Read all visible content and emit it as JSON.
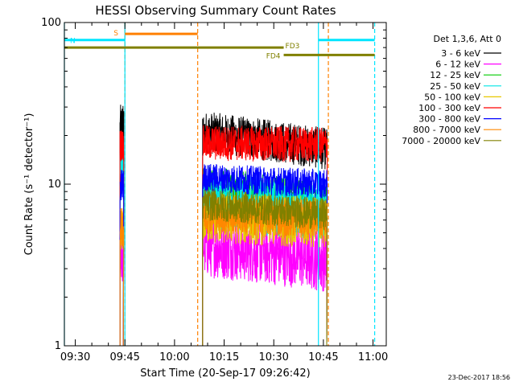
{
  "chart_data": {
    "type": "line",
    "title": "HESSI Observing Summary Count Rates",
    "xlabel": "Start Time (20-Sep-17 09:26:42)",
    "ylabel": "Count Rate (s⁻¹ detector⁻¹)",
    "y_scale": "log",
    "ylim": [
      1,
      100
    ],
    "xlim": [
      "09:26:42",
      "11:04:00"
    ],
    "x_ticks": [
      "09:30",
      "09:45",
      "10:00",
      "10:15",
      "10:30",
      "10:45",
      "11:00"
    ],
    "y_ticks": [
      "1",
      "10",
      "100"
    ],
    "grid": false,
    "legend": {
      "title": "Det 1,3,6, Att 0",
      "placement": "right"
    },
    "series": [
      {
        "name": "3 - 6 keV",
        "color": "#000000",
        "segments": [
          {
            "from": "09:43:30",
            "to": "09:44:30",
            "level": 21.5,
            "jitter": 0.16
          },
          {
            "from": "10:08:30",
            "to": "10:46:00",
            "level": 21.0,
            "jitter": 0.13,
            "end_level": 16.5
          }
        ]
      },
      {
        "name": "6 - 12 keV",
        "color": "#ff00ff",
        "segments": [
          {
            "from": "09:43:30",
            "to": "09:44:30",
            "level": 3.6,
            "jitter": 0.18
          },
          {
            "from": "10:08:30",
            "to": "10:46:00",
            "level": 4.2,
            "jitter": 0.2,
            "end_level": 3.4
          }
        ]
      },
      {
        "name": "12 - 25 keV",
        "color": "#00cc00",
        "segments": [
          {
            "from": "09:43:30",
            "to": "09:44:30",
            "level": 12.5,
            "jitter": 0.14
          },
          {
            "from": "10:08:30",
            "to": "10:46:00",
            "level": 9.0,
            "jitter": 0.16,
            "end_level": 7.0
          }
        ]
      },
      {
        "name": "25 - 50 keV",
        "color": "#00e5e5",
        "segments": [
          {
            "from": "09:43:30",
            "to": "09:44:30",
            "level": 13.0,
            "jitter": 0.14
          },
          {
            "from": "10:08:30",
            "to": "10:46:00",
            "level": 8.0,
            "jitter": 0.18,
            "end_level": 6.5
          }
        ]
      },
      {
        "name": "50 - 100 keV",
        "color": "#e8c800",
        "segments": [
          {
            "from": "09:43:30",
            "to": "09:44:30",
            "level": 5.2,
            "jitter": 0.12
          },
          {
            "from": "10:08:30",
            "to": "10:46:00",
            "level": 6.2,
            "jitter": 0.16,
            "end_level": 5.8
          }
        ]
      },
      {
        "name": "100 - 300 keV",
        "color": "#ff0000",
        "segments": [
          {
            "from": "09:43:30",
            "to": "09:44:30",
            "level": 17.5,
            "jitter": 0.1
          },
          {
            "from": "10:08:30",
            "to": "10:46:00",
            "level": 18.0,
            "jitter": 0.11,
            "end_level": 17.5
          }
        ]
      },
      {
        "name": "300 - 800 keV",
        "color": "#0000ff",
        "segments": [
          {
            "from": "09:43:30",
            "to": "09:44:30",
            "level": 9.8,
            "jitter": 0.1
          },
          {
            "from": "10:08:30",
            "to": "10:46:00",
            "level": 11.0,
            "jitter": 0.09,
            "end_level": 10.0
          }
        ]
      },
      {
        "name": "800 - 7000 keV",
        "color": "#ff8800",
        "segments": [
          {
            "from": "09:43:30",
            "to": "09:44:30",
            "level": 5.4,
            "jitter": 0.12
          },
          {
            "from": "10:08:30",
            "to": "10:46:00",
            "level": 6.5,
            "jitter": 0.12,
            "end_level": 6.0
          }
        ]
      },
      {
        "name": "7000 - 20000 keV",
        "color": "#808000",
        "segments": [
          {
            "from": "10:08:30",
            "to": "10:46:00",
            "level": 7.5,
            "jitter": 0.1,
            "end_level": 6.5
          }
        ]
      }
    ],
    "annotations": {
      "bars": [
        {
          "label": "S",
          "color": "#ff8000",
          "from": "09:45:00",
          "to": "10:07:00",
          "level": 85
        },
        {
          "label": "N",
          "color": "#00e5ff",
          "from": "09:26:42",
          "to": "09:45:00",
          "level": 78
        },
        {
          "label": "",
          "color": "#00e5ff",
          "from": "10:43:30",
          "to": "11:00:30",
          "level": 78
        },
        {
          "label": "FD3",
          "color": "#808000",
          "from": "09:26:42",
          "to": "10:33:00",
          "level": 70
        },
        {
          "label": "FD4",
          "color": "#808000",
          "from": "10:33:00",
          "to": "11:00:30",
          "level": 63
        }
      ],
      "vlines": [
        {
          "time": "09:26:42",
          "color": "#00e5ff",
          "style": "solid"
        },
        {
          "time": "09:45:00",
          "color": "#ff8000",
          "style": "dashed"
        },
        {
          "time": "09:45:00",
          "color": "#00e5ff",
          "style": "solid"
        },
        {
          "time": "10:07:00",
          "color": "#ff8000",
          "style": "dashed"
        },
        {
          "time": "10:43:30",
          "color": "#00e5ff",
          "style": "solid"
        },
        {
          "time": "10:46:30",
          "color": "#ff8000",
          "style": "dashed"
        },
        {
          "time": "11:00:30",
          "color": "#00e5ff",
          "style": "dashed"
        }
      ]
    }
  },
  "footer": {
    "stamp": "23-Dec-2017 18:56"
  }
}
